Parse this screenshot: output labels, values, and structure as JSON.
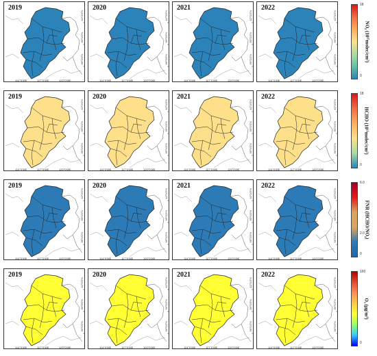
{
  "years": [
    "2019",
    "2020",
    "2021",
    "2022"
  ],
  "lon_labels": [
    "114°0'0\"E",
    "117°0'0\"E",
    "120°0'0\"E"
  ],
  "lat_labels": [
    "36°0'0\"N",
    "39°0'0\"N",
    "42°0'0\"N"
  ],
  "rows": [
    {
      "id": "no2",
      "label": "NO₂ (10¹⁵molec/cm²)",
      "max": "18",
      "min": "0",
      "colors": {
        "high": "#d73027",
        "mid_high": "#f46d43",
        "mid": "#fdae61",
        "low_mid": "#e0d98c",
        "low": "#74c0a6",
        "lowest": "#2b83ba"
      },
      "gradient": [
        "#d7191c",
        "#f46d43",
        "#fdae61",
        "#fee08b",
        "#abdda4",
        "#66c2a5",
        "#2b83ba"
      ]
    },
    {
      "id": "hcho",
      "label": "HCHO (10¹⁵molec/cm²)",
      "max": "18",
      "min": "0",
      "colors": {
        "high": "#d73027",
        "mid_high": "#f46d43",
        "mid": "#fdae61",
        "low_mid": "#fee08b"
      },
      "gradient": [
        "#d7191c",
        "#f46d43",
        "#fdae61",
        "#fee08b",
        "#abdda4",
        "#2b83ba"
      ]
    },
    {
      "id": "fnr",
      "label": "FNR (HCHO/NO₂)",
      "max": "6.0",
      "mid": "2.0",
      "min": "0",
      "colors": {
        "high": "#e41a1c",
        "mid": "#d9a560",
        "low": "#2c7bb6"
      },
      "gradient": [
        "#a50026",
        "#e41a1c",
        "#d9a560",
        "#d9a560",
        "#2c7bb6",
        "#2166ac"
      ]
    },
    {
      "id": "o3",
      "label": "O₃ (μg/m³)",
      "max": "160",
      "min": "0",
      "colors": {
        "high": "#d7301f",
        "mid_high": "#fc8d59",
        "mid": "#fdcc46",
        "low": "#ffff33"
      },
      "gradient": [
        "#b30000",
        "#e34a33",
        "#fc8d59",
        "#fdcc46",
        "#ffff33",
        "#99ff66",
        "#33ccff",
        "#0000ff"
      ]
    }
  ]
}
